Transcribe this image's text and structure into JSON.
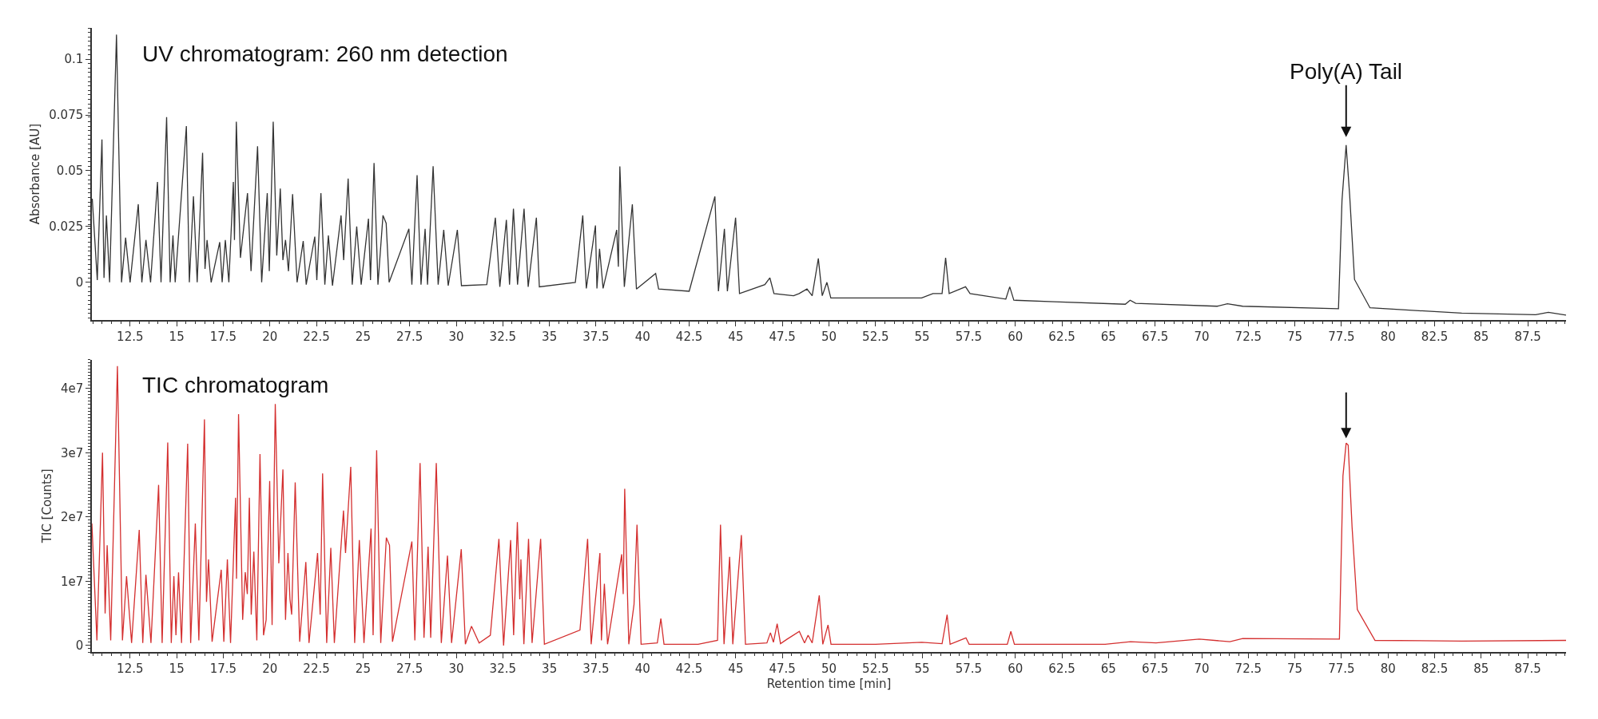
{
  "chart_data": [
    {
      "type": "line",
      "ylabel": "Absorbance [AU]",
      "xlim": [
        10.45,
        89.55
      ],
      "xticks": [
        12.5,
        15,
        17.5,
        20,
        22.5,
        25,
        27.5,
        30,
        32.5,
        35,
        37.5,
        40,
        42.5,
        45,
        47.5,
        50,
        52.5,
        55,
        57.5,
        60,
        62.5,
        65,
        67.5,
        70,
        72.5,
        75,
        77.5,
        80,
        82.5,
        85,
        87.5
      ],
      "ylim": [
        -0.017,
        0.114
      ],
      "yticks": [
        0,
        0.025,
        0.05,
        0.075,
        0.1
      ],
      "annotations": [
        "UV chromatogram: 260 nm detection",
        {
          "text": "Poly(A) Tail",
          "x": 77.75,
          "y": 0.0615
        }
      ],
      "series": [
        {
          "color": "#333333",
          "x": [
            10.47,
            10.74,
            10.99,
            11.1,
            11.23,
            11.4,
            11.77,
            12.04,
            12.26,
            12.5,
            12.94,
            13.13,
            13.35,
            13.6,
            13.97,
            14.16,
            14.46,
            14.65,
            14.8,
            14.92,
            15.52,
            15.68,
            15.9,
            16.1,
            16.39,
            16.52,
            16.63,
            16.85,
            17.31,
            17.44,
            17.61,
            17.8,
            18.04,
            18.1,
            18.2,
            18.42,
            18.8,
            18.99,
            19.34,
            19.56,
            19.86,
            19.97,
            20.18,
            20.37,
            20.56,
            20.7,
            20.84,
            21.0,
            21.22,
            21.46,
            21.79,
            21.95,
            22.41,
            22.52,
            22.74,
            22.95,
            23.14,
            23.36,
            23.82,
            23.96,
            24.2,
            24.42,
            24.66,
            24.9,
            25.29,
            25.4,
            25.59,
            25.8,
            26.07,
            26.24,
            26.4,
            27.46,
            27.62,
            27.9,
            28.11,
            28.33,
            28.46,
            28.76,
            29.03,
            29.33,
            29.57,
            30.06,
            30.28,
            31.64,
            32.1,
            32.34,
            32.69,
            32.86,
            33.07,
            33.29,
            33.64,
            33.86,
            34.3,
            34.46,
            36.39,
            36.79,
            36.98,
            37.47,
            37.55,
            37.69,
            37.88,
            38.61,
            38.7,
            38.78,
            39.02,
            39.45,
            39.67,
            40.7,
            40.86,
            42.5,
            43.88,
            44.07,
            44.39,
            44.55,
            44.99,
            45.2,
            46.56,
            46.83,
            47.05,
            48.1,
            48.4,
            48.82,
            49.1,
            49.43,
            49.64,
            49.89,
            50.1,
            52.5,
            54.97,
            55.58,
            56.07,
            56.26,
            56.45,
            57.33,
            57.57,
            59.49,
            59.7,
            59.92,
            62.08,
            65.9,
            66.16,
            66.46,
            70.83,
            71.38,
            72.2,
            77.34,
            77.53,
            77.75,
            77.94,
            78.2,
            79.03,
            83.95,
            87.92,
            88.6,
            89.55
          ],
          "values": [
            0.0375,
            0.001,
            0.064,
            0.002,
            0.03,
            0,
            0.111,
            0,
            0.02,
            0,
            0.035,
            0,
            0.019,
            0,
            0.045,
            0,
            0.074,
            0,
            0.021,
            0,
            0.07,
            0,
            0.0385,
            0,
            0.058,
            0.006,
            0.019,
            0,
            0.018,
            0,
            0.019,
            0,
            0.045,
            0.019,
            0.072,
            0.011,
            0.04,
            0.005,
            0.061,
            0,
            0.04,
            0.005,
            0.072,
            0.012,
            0.042,
            0.01,
            0.019,
            0.005,
            0.0395,
            0,
            0.0185,
            -0.001,
            0.0205,
            0.001,
            0.04,
            -0.001,
            0.021,
            -0.0015,
            0.03,
            0.01,
            0.0465,
            -0.001,
            0.025,
            -0.001,
            0.0285,
            0.001,
            0.0535,
            -0.001,
            0.03,
            0.0265,
            0,
            0.024,
            -0.001,
            0.048,
            -0.001,
            0.024,
            -0.001,
            0.052,
            -0.001,
            0.0235,
            -0.0015,
            0.0235,
            -0.0015,
            -0.001,
            0.029,
            -0.002,
            0.028,
            -0.001,
            0.033,
            -0.001,
            0.033,
            -0.002,
            0.029,
            -0.002,
            0,
            0.03,
            -0.0027,
            0.0255,
            -0.0027,
            0.015,
            -0.0027,
            0.0235,
            0.007,
            0.052,
            -0.002,
            0.035,
            -0.003,
            0.004,
            -0.003,
            -0.004,
            0.0385,
            -0.004,
            0.024,
            -0.004,
            0.029,
            -0.005,
            -0.001,
            0.002,
            -0.005,
            -0.006,
            -0.005,
            -0.003,
            -0.006,
            0.0107,
            -0.006,
            0,
            -0.007,
            -0.007,
            -0.007,
            -0.005,
            -0.005,
            0.011,
            -0.005,
            -0.002,
            -0.005,
            -0.0075,
            -0.002,
            -0.008,
            -0.0087,
            -0.0098,
            -0.008,
            -0.0094,
            -0.0107,
            -0.0096,
            -0.0107,
            -0.0118,
            0.037,
            0.0615,
            0.039,
            0.0013,
            -0.0114,
            -0.0138,
            -0.0145,
            -0.0134,
            -0.0147
          ]
        }
      ]
    },
    {
      "type": "line",
      "ylabel": "TIC [Counts]",
      "xlabel": "Retention time [min]",
      "xlim": [
        10.45,
        89.55
      ],
      "xticks": [
        12.5,
        15,
        17.5,
        20,
        22.5,
        25,
        27.5,
        30,
        32.5,
        35,
        37.5,
        40,
        42.5,
        45,
        47.5,
        50,
        52.5,
        55,
        57.5,
        60,
        62.5,
        65,
        67.5,
        70,
        72.5,
        75,
        77.5,
        80,
        82.5,
        85,
        87.5
      ],
      "ylim": [
        -1000000,
        44500000
      ],
      "yticks": [
        0,
        {
          "value": 10000000,
          "label": "1e7"
        },
        {
          "value": 20000000,
          "label": "2e7"
        },
        {
          "value": 30000000,
          "label": "3e7"
        },
        {
          "value": 40000000,
          "label": "4e7"
        }
      ],
      "annotations": [
        "TIC chromatogram"
      ],
      "series": [
        {
          "color": "#d42f2f",
          "x": [
            10.45,
            10.72,
            11.02,
            11.16,
            11.27,
            11.46,
            11.82,
            12.09,
            12.31,
            12.58,
            12.99,
            13.18,
            13.35,
            13.62,
            14.03,
            14.22,
            14.52,
            14.71,
            14.85,
            14.96,
            15.1,
            15.26,
            15.59,
            15.75,
            16.0,
            16.19,
            16.49,
            16.6,
            16.71,
            16.9,
            17.39,
            17.53,
            17.72,
            17.89,
            18.16,
            18.21,
            18.32,
            18.54,
            18.68,
            18.79,
            18.9,
            19.0,
            19.14,
            19.3,
            19.47,
            19.66,
            19.8,
            19.99,
            20.12,
            20.29,
            20.48,
            20.7,
            20.84,
            20.97,
            21.08,
            21.17,
            21.36,
            21.6,
            21.93,
            22.1,
            22.56,
            22.7,
            22.83,
            23.05,
            23.27,
            23.46,
            23.95,
            24.06,
            24.34,
            24.55,
            24.8,
            25.05,
            25.43,
            25.54,
            25.73,
            25.95,
            26.25,
            26.42,
            26.58,
            27.62,
            27.78,
            28.06,
            28.27,
            28.49,
            28.63,
            28.93,
            29.2,
            29.53,
            29.75,
            30.27,
            30.49,
            30.82,
            31.23,
            31.83,
            32.29,
            32.54,
            32.92,
            33.08,
            33.28,
            33.41,
            33.47,
            33.63,
            33.88,
            34.07,
            34.53,
            34.73,
            36.64,
            37.05,
            37.24,
            37.71,
            37.79,
            37.95,
            38.12,
            38.88,
            38.96,
            39.04,
            39.26,
            39.54,
            39.7,
            39.92,
            40.79,
            40.98,
            41.15,
            42.98,
            44.02,
            44.18,
            44.37,
            44.67,
            44.84,
            45.3,
            45.52,
            46.67,
            46.86,
            47.02,
            47.22,
            47.4,
            47.76,
            48.41,
            48.69,
            48.88,
            49.1,
            49.48,
            49.67,
            49.95,
            50.11,
            52.5,
            54.98,
            56.07,
            56.34,
            56.5,
            57.35,
            57.52,
            59.57,
            59.76,
            59.95,
            64.82,
            66.18,
            67.55,
            69.87,
            71.51,
            72.2,
            77.39,
            77.58,
            77.75,
            77.86,
            78.07,
            78.35,
            79.3,
            83.95,
            89.55
          ],
          "values": [
            19000000,
            800000,
            30000000,
            5000000,
            15600000,
            800000,
            43500000,
            800000,
            10800000,
            400000,
            18000000,
            400000,
            11000000,
            400000,
            25000000,
            400000,
            31600000,
            400000,
            10800000,
            1600000,
            11400000,
            400000,
            31400000,
            400000,
            19000000,
            800000,
            35200000,
            6800000,
            13400000,
            600000,
            11800000,
            600000,
            13400000,
            400000,
            23000000,
            10400000,
            36000000,
            4000000,
            11400000,
            8000000,
            23000000,
            4800000,
            14600000,
            800000,
            29800000,
            1600000,
            4000000,
            25600000,
            3200000,
            37600000,
            12800000,
            27400000,
            4000000,
            14400000,
            7200000,
            4800000,
            25400000,
            600000,
            13000000,
            400000,
            14400000,
            4800000,
            26800000,
            400000,
            15200000,
            400000,
            21000000,
            14400000,
            27800000,
            400000,
            16400000,
            400000,
            18200000,
            1600000,
            30400000,
            400000,
            16800000,
            15600000,
            600000,
            16200000,
            800000,
            28400000,
            1200000,
            15400000,
            1200000,
            28400000,
            400000,
            14000000,
            400000,
            15000000,
            200000,
            3000000,
            400000,
            1600000,
            16600000,
            0,
            16400000,
            1600000,
            19200000,
            7200000,
            13400000,
            200000,
            16600000,
            400000,
            16600000,
            200000,
            2400000,
            16600000,
            200000,
            14400000,
            800000,
            9600000,
            200000,
            14200000,
            8000000,
            24400000,
            200000,
            6400000,
            18800000,
            200000,
            400000,
            4200000,
            200000,
            200000,
            800000,
            18800000,
            200000,
            13800000,
            200000,
            17200000,
            200000,
            400000,
            2000000,
            500000,
            3400000,
            300000,
            1000000,
            2200000,
            400000,
            1600000,
            400000,
            7800000,
            200000,
            3200000,
            200000,
            200000,
            500000,
            300000,
            4800000,
            200000,
            1200000,
            200000,
            200000,
            2200000,
            200000,
            200000,
            600000,
            400000,
            1000000,
            600000,
            1100000,
            1000000,
            26400000,
            31500000,
            31200000,
            18400000,
            5600000,
            800000,
            700000,
            800000
          ]
        }
      ]
    }
  ]
}
